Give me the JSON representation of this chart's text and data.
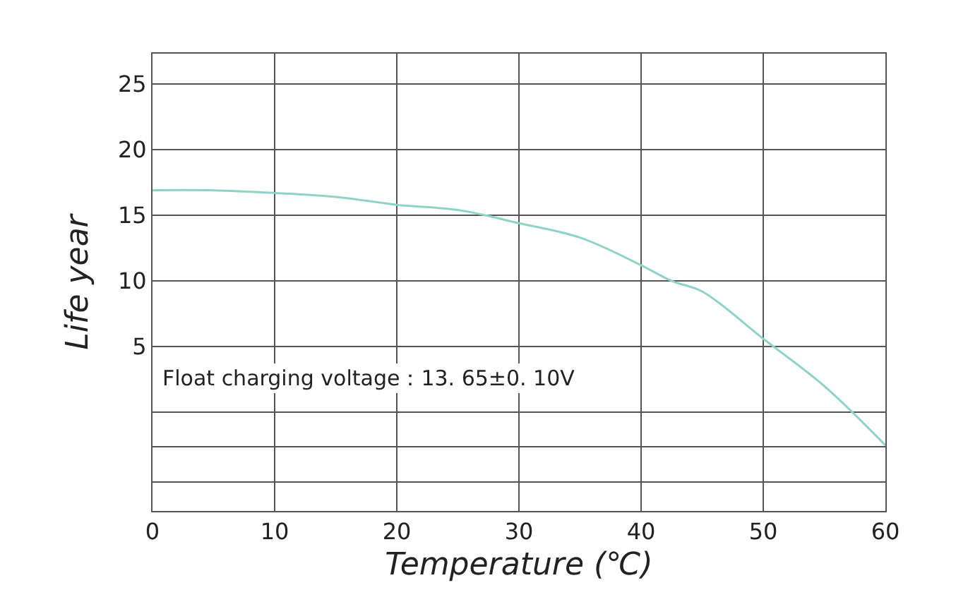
{
  "chart_data": {
    "type": "line",
    "xlabel": "Temperature (℃)",
    "ylabel": "Life year",
    "x": [
      0,
      5,
      10,
      15,
      20,
      25,
      30,
      35,
      40,
      42.5,
      45,
      50,
      55,
      60
    ],
    "series": [
      {
        "color": "#8fd3c8",
        "values": [
          16.9,
          16.9,
          16.7,
          16.4,
          15.8,
          15.4,
          14.4,
          13.3,
          11.2,
          10.0,
          9.2,
          5.6,
          2.0,
          -2.5
        ]
      }
    ],
    "xlim": [
      0,
      60
    ],
    "xticks": [
      0,
      10,
      20,
      30,
      40,
      50,
      60
    ],
    "ylim": [
      -7.5,
      27.3
    ],
    "yticks": [
      {
        "value": -5.3,
        "label": null
      },
      {
        "value": -2.6,
        "label": null
      },
      {
        "value": 0,
        "label": null
      },
      5,
      10,
      15,
      20,
      25
    ],
    "annotations": [
      "Float charging voltage：13. 65±0. 10V"
    ],
    "grid": true,
    "marker": "none",
    "line_style": "solid"
  }
}
